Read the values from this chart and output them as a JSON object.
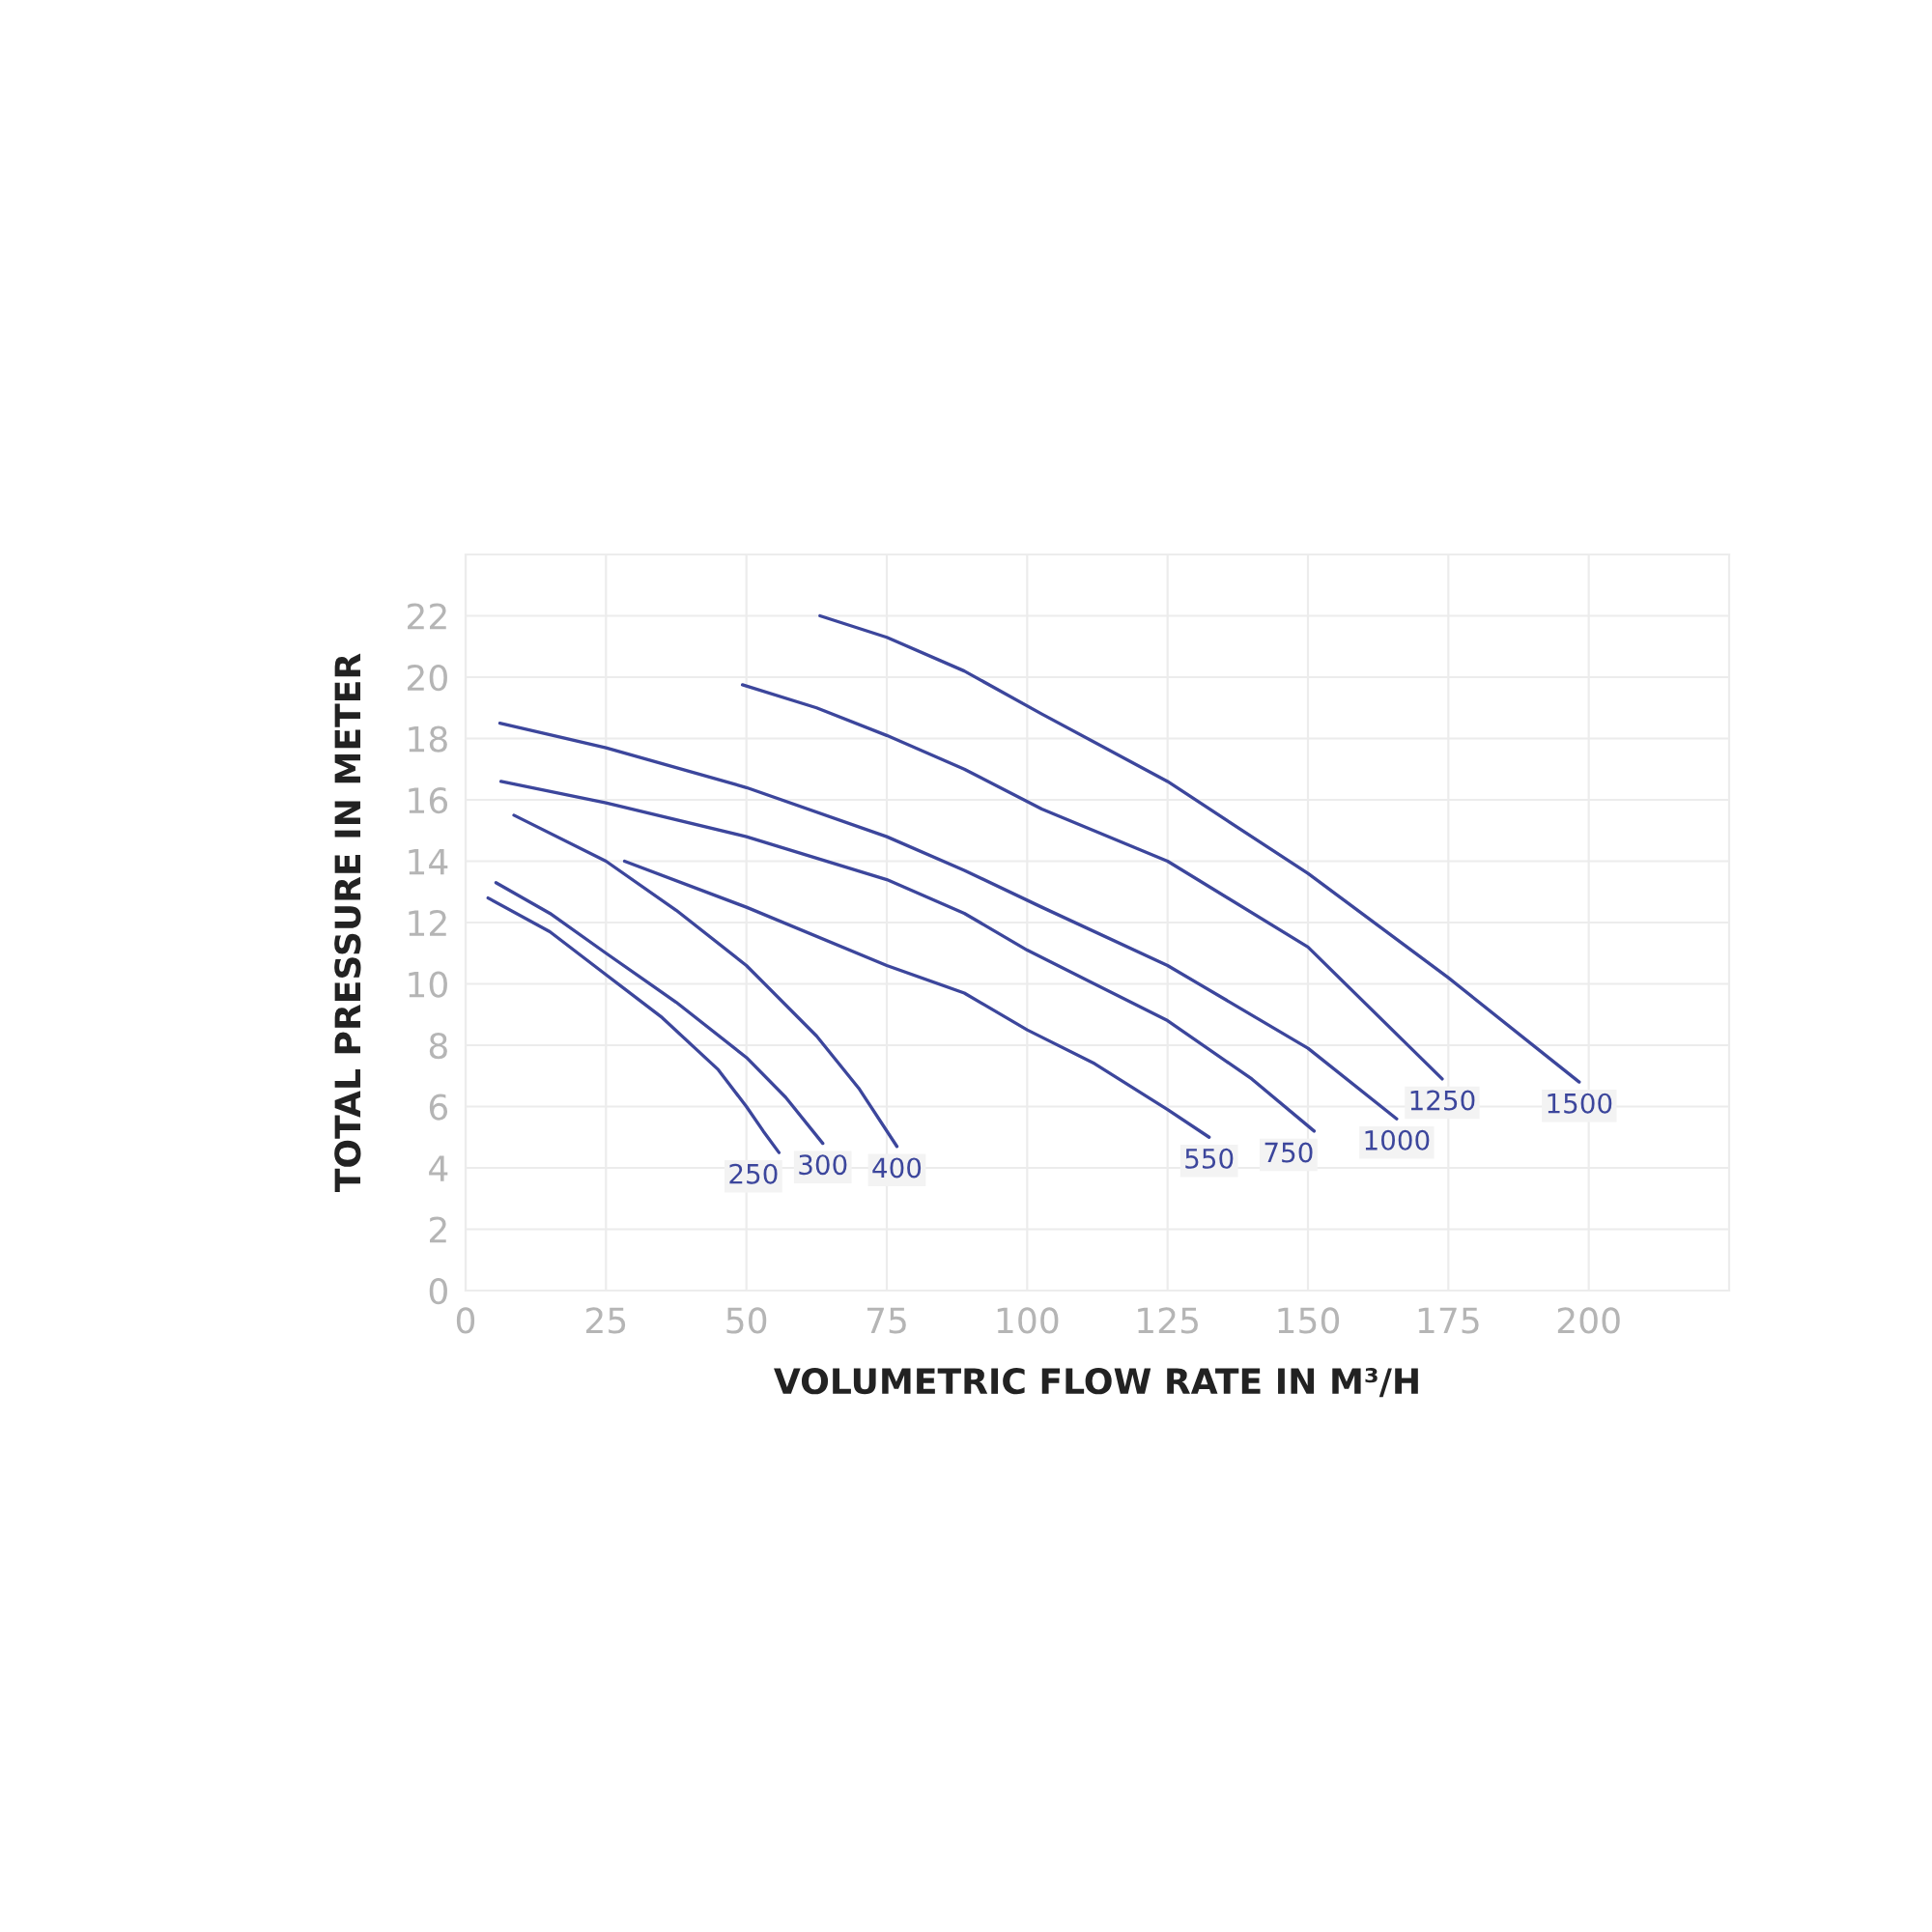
{
  "chart_data": {
    "type": "line",
    "xlabel": "VOLUMETRIC FLOW RATE IN M³/H",
    "ylabel": "TOTAL PRESSURE IN METER",
    "xlim": [
      0,
      225
    ],
    "xticks": [
      0,
      25,
      50,
      75,
      100,
      125,
      150,
      175,
      200
    ],
    "ylim": [
      0,
      24
    ],
    "yticks": [
      0,
      2,
      4,
      6,
      8,
      10,
      12,
      14,
      16,
      18,
      20,
      22
    ],
    "grid": true,
    "series": [
      {
        "name": "250",
        "color": "#3c469c",
        "x": [
          4.0,
          15,
          25,
          35,
          45,
          50,
          53,
          55.8
        ],
        "values": [
          12.8,
          11.7,
          10.3,
          8.9,
          7.2,
          6.0,
          5.2,
          4.5
        ]
      },
      {
        "name": "300",
        "color": "#3c469c",
        "x": [
          5.4,
          15,
          25,
          37.5,
          50,
          57,
          63.6
        ],
        "values": [
          13.3,
          12.3,
          11.0,
          9.4,
          7.6,
          6.3,
          4.8
        ]
      },
      {
        "name": "400",
        "color": "#3c469c",
        "x": [
          8.6,
          25,
          37.5,
          50,
          62.5,
          70,
          76.8
        ],
        "values": [
          15.5,
          14.0,
          12.4,
          10.6,
          8.3,
          6.6,
          4.7
        ]
      },
      {
        "name": "550",
        "color": "#3c469c",
        "x": [
          28.3,
          50,
          75,
          88.8,
          100,
          112,
          125,
          132.4
        ],
        "values": [
          14.0,
          12.5,
          10.6,
          9.7,
          8.5,
          7.4,
          5.9,
          5.0
        ]
      },
      {
        "name": "750",
        "color": "#3c469c",
        "x": [
          6.3,
          25,
          50,
          75,
          88.8,
          100,
          125,
          140,
          151.1
        ],
        "values": [
          16.6,
          15.9,
          14.8,
          13.4,
          12.3,
          11.1,
          8.8,
          6.9,
          5.2
        ]
      },
      {
        "name": "1000",
        "color": "#3c469c",
        "x": [
          6.1,
          25,
          50,
          75,
          88.8,
          102.6,
          125,
          150,
          165.8
        ],
        "values": [
          18.5,
          17.7,
          16.4,
          14.8,
          13.7,
          12.5,
          10.6,
          7.9,
          5.6
        ]
      },
      {
        "name": "1250",
        "color": "#3c469c",
        "x": [
          49.3,
          62.5,
          75,
          88.8,
          102.6,
          125,
          150,
          173.9
        ],
        "values": [
          19.75,
          19.0,
          18.1,
          17.0,
          15.7,
          14.0,
          11.2,
          6.9
        ]
      },
      {
        "name": "1500",
        "color": "#3c469c",
        "x": [
          63.1,
          75,
          88.8,
          102.6,
          125,
          150,
          175,
          198.3
        ],
        "values": [
          22.0,
          21.3,
          20.2,
          18.8,
          16.6,
          13.6,
          10.2,
          6.8
        ]
      }
    ]
  }
}
